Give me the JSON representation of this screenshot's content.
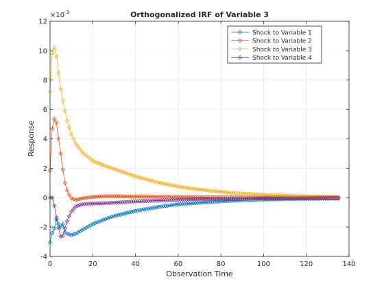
{
  "chart_data": {
    "type": "line",
    "title": "Orthogonalized IRF of Variable 3",
    "xlabel": "Observation Time",
    "ylabel": "Response",
    "y_exponent_label": "×10",
    "y_exponent_power": "-3",
    "xlim": [
      0,
      140
    ],
    "ylim": [
      -4,
      12
    ],
    "xticks": [
      0,
      20,
      40,
      60,
      80,
      100,
      120,
      140
    ],
    "yticks": [
      -4,
      -2,
      0,
      2,
      4,
      6,
      8,
      10,
      12
    ],
    "grid": true,
    "legend_position": "top-right",
    "marker": "diamond",
    "y_scale_note": "values in units of 1e-3",
    "x_start": 0,
    "x_end": 135,
    "series": [
      {
        "name": "Shock to Variable 1",
        "color": "#0072BD",
        "keypoints": [
          [
            0,
            -3.05
          ],
          [
            1,
            -2.4
          ],
          [
            2,
            -2.1
          ],
          [
            3,
            -1.5
          ],
          [
            4,
            -1.8
          ],
          [
            5,
            -2.0
          ],
          [
            6,
            -1.8
          ],
          [
            7,
            -2.35
          ],
          [
            8,
            -2.45
          ],
          [
            9,
            -2.5
          ],
          [
            10,
            -2.55
          ],
          [
            12,
            -2.45
          ],
          [
            15,
            -2.2
          ],
          [
            20,
            -1.8
          ],
          [
            25,
            -1.5
          ],
          [
            30,
            -1.25
          ],
          [
            40,
            -0.9
          ],
          [
            50,
            -0.65
          ],
          [
            60,
            -0.45
          ],
          [
            70,
            -0.35
          ],
          [
            80,
            -0.25
          ],
          [
            90,
            -0.18
          ],
          [
            100,
            -0.13
          ],
          [
            110,
            -0.1
          ],
          [
            120,
            -0.08
          ],
          [
            135,
            -0.06
          ]
        ]
      },
      {
        "name": "Shock to Variable 2",
        "color": "#D95319",
        "keypoints": [
          [
            0,
            1.85
          ],
          [
            1,
            4.7
          ],
          [
            2,
            5.35
          ],
          [
            3,
            5.1
          ],
          [
            4,
            4.0
          ],
          [
            5,
            3.0
          ],
          [
            6,
            1.9
          ],
          [
            7,
            1.0
          ],
          [
            8,
            0.5
          ],
          [
            9,
            0.2
          ],
          [
            10,
            -0.05
          ],
          [
            12,
            -0.15
          ],
          [
            15,
            -0.05
          ],
          [
            20,
            0.05
          ],
          [
            25,
            0.1
          ],
          [
            30,
            0.1
          ],
          [
            40,
            0.08
          ],
          [
            60,
            0.05
          ],
          [
            80,
            0.03
          ],
          [
            100,
            0.02
          ],
          [
            135,
            0.01
          ]
        ]
      },
      {
        "name": "Shock to Variable 3",
        "color": "#EDB120",
        "keypoints": [
          [
            0,
            7.2
          ],
          [
            1,
            9.8
          ],
          [
            2,
            10.2
          ],
          [
            3,
            9.6
          ],
          [
            4,
            8.5
          ],
          [
            5,
            7.4
          ],
          [
            6,
            6.6
          ],
          [
            7,
            5.9
          ],
          [
            8,
            5.25
          ],
          [
            9,
            4.75
          ],
          [
            10,
            4.3
          ],
          [
            12,
            3.7
          ],
          [
            15,
            3.1
          ],
          [
            20,
            2.5
          ],
          [
            25,
            2.2
          ],
          [
            30,
            1.95
          ],
          [
            40,
            1.45
          ],
          [
            50,
            1.05
          ],
          [
            60,
            0.75
          ],
          [
            70,
            0.55
          ],
          [
            80,
            0.4
          ],
          [
            90,
            0.28
          ],
          [
            100,
            0.2
          ],
          [
            110,
            0.15
          ],
          [
            120,
            0.1
          ],
          [
            135,
            0.05
          ]
        ]
      },
      {
        "name": "Shock to Variable 4",
        "color": "#7E2F8E",
        "keypoints": [
          [
            0,
            0.0
          ],
          [
            1,
            0.0
          ],
          [
            2,
            -0.55
          ],
          [
            3,
            -1.35
          ],
          [
            4,
            -2.05
          ],
          [
            5,
            -2.65
          ],
          [
            6,
            -2.6
          ],
          [
            7,
            -2.1
          ],
          [
            8,
            -1.6
          ],
          [
            9,
            -1.25
          ],
          [
            10,
            -0.95
          ],
          [
            12,
            -0.6
          ],
          [
            15,
            -0.45
          ],
          [
            20,
            -0.4
          ],
          [
            25,
            -0.38
          ],
          [
            30,
            -0.35
          ],
          [
            40,
            -0.25
          ],
          [
            60,
            -0.15
          ],
          [
            80,
            -0.08
          ],
          [
            100,
            -0.05
          ],
          [
            135,
            -0.02
          ]
        ]
      }
    ]
  }
}
